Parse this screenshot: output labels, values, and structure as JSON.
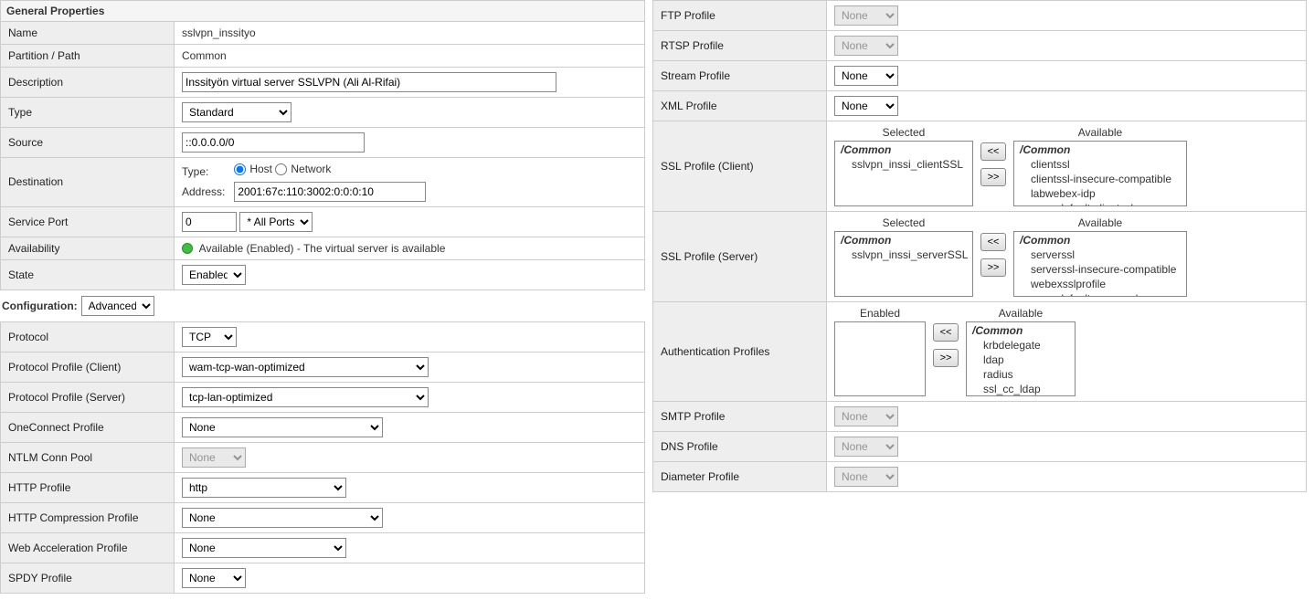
{
  "headers": {
    "general": "General Properties",
    "config": "Configuration:"
  },
  "general": {
    "name_label": "Name",
    "name_value": "sslvpn_inssityo",
    "partition_label": "Partition / Path",
    "partition_value": "Common",
    "description_label": "Description",
    "description_value": "Inssityön virtual server SSLVPN (Ali Al-Rifai)",
    "type_label": "Type",
    "type_value": "Standard",
    "source_label": "Source",
    "source_value": "::0.0.0.0/0",
    "destination_label": "Destination",
    "dest_type_label": "Type:",
    "dest_host_label": "Host",
    "dest_network_label": "Network",
    "dest_address_label": "Address:",
    "dest_address_value": "2001:67c:110:3002:0:0:0:10",
    "service_port_label": "Service Port",
    "service_port_value": "0",
    "service_port_select": "* All Ports",
    "availability_label": "Availability",
    "availability_text": "Available (Enabled) - The virtual server is available",
    "state_label": "State",
    "state_value": "Enabled"
  },
  "config_mode": "Advanced",
  "config_left": {
    "protocol_label": "Protocol",
    "protocol": "TCP",
    "protocol_profile_client_label": "Protocol Profile (Client)",
    "protocol_profile_client": "wam-tcp-wan-optimized",
    "protocol_profile_server_label": "Protocol Profile (Server)",
    "protocol_profile_server": "tcp-lan-optimized",
    "oneconnect_label": "OneConnect Profile",
    "oneconnect": "None",
    "ntlm_label": "NTLM Conn Pool",
    "ntlm": "None",
    "http_label": "HTTP Profile",
    "http": "http",
    "http_compression_label": "HTTP Compression Profile",
    "http_compression": "None",
    "web_accel_label": "Web Acceleration Profile",
    "web_accel": "None",
    "spdy_label": "SPDY Profile",
    "spdy": "None"
  },
  "config_right": {
    "ftp_label": "FTP Profile",
    "ftp": "None",
    "rtsp_label": "RTSP Profile",
    "rtsp": "None",
    "stream_label": "Stream Profile",
    "stream": "None",
    "xml_label": "XML Profile",
    "xml": "None",
    "ssl_client_label": "SSL Profile (Client)",
    "ssl_server_label": "SSL Profile (Server)",
    "auth_label": "Authentication Profiles",
    "smtp_label": "SMTP Profile",
    "smtp": "None",
    "dns_label": "DNS Profile",
    "dns": "None",
    "diameter_label": "Diameter Profile",
    "diameter": "None",
    "selected_head": "Selected",
    "available_head": "Available",
    "enabled_head": "Enabled",
    "common_hdr": "/Common",
    "ssl_client_selected": [
      "sslvpn_inssi_clientSSL"
    ],
    "ssl_client_avail": [
      "clientssl",
      "clientssl-insecure-compatible",
      "labwebex-idp",
      "wom-default-clientssl"
    ],
    "ssl_server_selected": [
      "sslvpn_inssi_serverSSL"
    ],
    "ssl_server_avail": [
      "serverssl",
      "serverssl-insecure-compatible",
      "webexsslprofile",
      "wom-default-serverssl"
    ],
    "auth_avail": [
      "krbdelegate",
      "ldap",
      "radius",
      "ssl_cc_ldap"
    ]
  },
  "btn": {
    "left": "<<",
    "right": ">>"
  }
}
